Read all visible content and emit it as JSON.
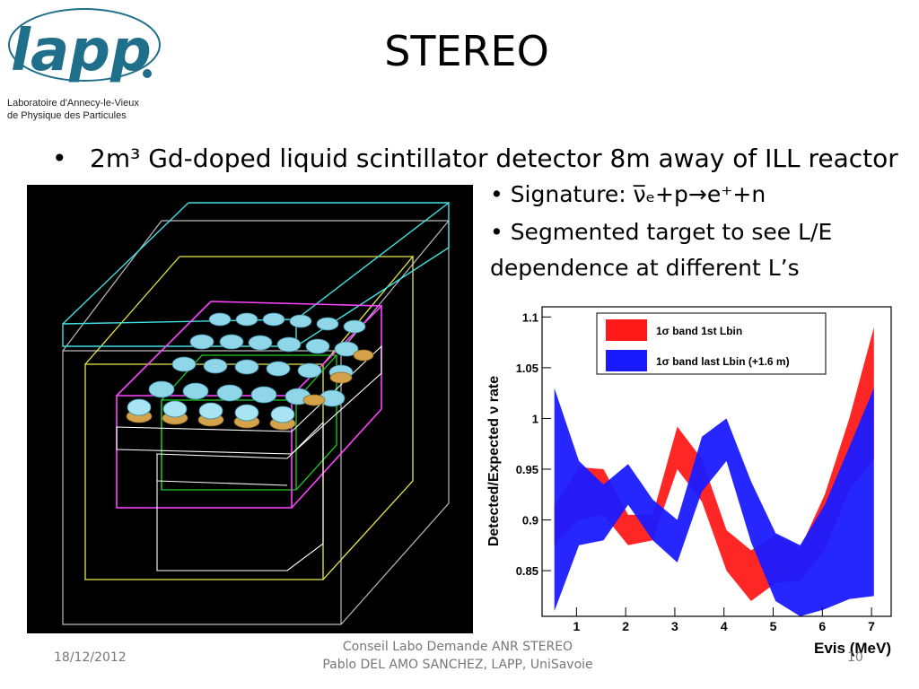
{
  "logo": {
    "wordmark": "lapp",
    "line1": "Laboratoire d'Annecy-le-Vieux",
    "line2": "de  Physique  des  Particules"
  },
  "slide": {
    "title": "STEREO",
    "bullet_text": "2m³ Gd-doped liquid scintillator detector 8m away of ILL reactor",
    "sub1": "• Signature:  ν̅ₑ+p→e⁺+n",
    "sub2": "• Segmented target to see L/E",
    "sub3": "dependence at different L’s"
  },
  "footer": {
    "date": "18/12/2012",
    "line1": "Conseil Labo Demande ANR STEREO",
    "line2": "Pablo DEL AMO SANCHEZ, LAPP, UniSavoie",
    "page": "10"
  },
  "chart_data": {
    "type": "area",
    "xlabel": "Evis (MeV)",
    "ylabel": "Detected/Expected ν rate",
    "xlim": [
      0.3,
      7.4
    ],
    "ylim": [
      0.805,
      1.11
    ],
    "xticks": [
      "1",
      "2",
      "3",
      "4",
      "5",
      "6",
      "7"
    ],
    "yticks": [
      "0.85",
      "0.9",
      "0.95",
      "1",
      "1.05",
      "1.1"
    ],
    "series": [
      {
        "name": "1σ band 1st Lbin",
        "color": "#ff1a1a",
        "x": [
          0.55,
          1.05,
          1.55,
          2.05,
          2.55,
          3.05,
          3.55,
          4.05,
          4.55,
          5.05,
          5.55,
          6.05,
          6.55,
          7.05
        ],
        "upper": [
          0.915,
          0.952,
          0.95,
          0.905,
          0.905,
          0.992,
          0.96,
          0.89,
          0.87,
          0.885,
          0.872,
          0.925,
          1.0,
          1.09
        ],
        "lower": [
          0.875,
          0.9,
          0.905,
          0.875,
          0.88,
          0.95,
          0.918,
          0.85,
          0.82,
          0.838,
          0.84,
          0.87,
          0.93,
          0.96
        ]
      },
      {
        "name": "1σ band last Lbin (+1.6 m)",
        "color": "#1a1aff",
        "x": [
          0.55,
          1.05,
          1.55,
          2.05,
          2.55,
          3.05,
          3.55,
          4.05,
          4.55,
          5.05,
          5.55,
          6.05,
          6.55,
          7.05
        ],
        "upper": [
          1.03,
          0.958,
          0.935,
          0.955,
          0.92,
          0.9,
          0.982,
          1.0,
          0.938,
          0.887,
          0.875,
          0.915,
          0.972,
          1.03
        ],
        "lower": [
          0.81,
          0.875,
          0.88,
          0.915,
          0.88,
          0.858,
          0.928,
          0.958,
          0.878,
          0.82,
          0.805,
          0.812,
          0.822,
          0.825
        ]
      }
    ]
  }
}
